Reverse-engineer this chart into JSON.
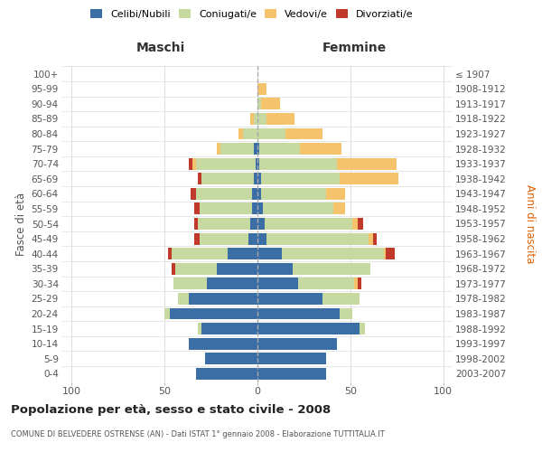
{
  "age_groups": [
    "0-4",
    "5-9",
    "10-14",
    "15-19",
    "20-24",
    "25-29",
    "30-34",
    "35-39",
    "40-44",
    "45-49",
    "50-54",
    "55-59",
    "60-64",
    "65-69",
    "70-74",
    "75-79",
    "80-84",
    "85-89",
    "90-94",
    "95-99",
    "100+"
  ],
  "birth_years": [
    "2003-2007",
    "1998-2002",
    "1993-1997",
    "1988-1992",
    "1983-1987",
    "1978-1982",
    "1973-1977",
    "1968-1972",
    "1963-1967",
    "1958-1962",
    "1953-1957",
    "1948-1952",
    "1943-1947",
    "1938-1942",
    "1933-1937",
    "1928-1932",
    "1923-1927",
    "1918-1922",
    "1913-1917",
    "1908-1912",
    "≤ 1907"
  ],
  "maschi": {
    "celibe": [
      33,
      28,
      37,
      30,
      47,
      37,
      27,
      22,
      16,
      5,
      4,
      3,
      3,
      2,
      1,
      2,
      0,
      0,
      0,
      0,
      0
    ],
    "coniugato": [
      0,
      0,
      0,
      2,
      3,
      6,
      18,
      22,
      30,
      26,
      28,
      28,
      30,
      28,
      32,
      18,
      8,
      2,
      0,
      0,
      0
    ],
    "vedovo": [
      0,
      0,
      0,
      0,
      0,
      0,
      0,
      0,
      0,
      0,
      0,
      0,
      0,
      0,
      2,
      2,
      2,
      2,
      0,
      0,
      0
    ],
    "divorziato": [
      0,
      0,
      0,
      0,
      0,
      0,
      0,
      2,
      2,
      3,
      2,
      3,
      3,
      2,
      2,
      0,
      0,
      0,
      0,
      0,
      0
    ]
  },
  "femmine": {
    "nubile": [
      37,
      37,
      43,
      55,
      44,
      35,
      22,
      19,
      13,
      5,
      4,
      3,
      2,
      2,
      1,
      1,
      0,
      0,
      0,
      0,
      0
    ],
    "coniugata": [
      0,
      0,
      0,
      3,
      7,
      20,
      30,
      42,
      55,
      55,
      47,
      38,
      35,
      42,
      42,
      22,
      15,
      5,
      2,
      0,
      0
    ],
    "vedova": [
      0,
      0,
      0,
      0,
      0,
      0,
      2,
      0,
      1,
      2,
      3,
      6,
      10,
      32,
      32,
      22,
      20,
      15,
      10,
      5,
      0
    ],
    "divorziata": [
      0,
      0,
      0,
      0,
      0,
      0,
      2,
      0,
      5,
      2,
      3,
      0,
      0,
      0,
      0,
      0,
      0,
      0,
      0,
      0,
      0
    ]
  },
  "colors": {
    "celibe": "#3b6ea5",
    "coniugato": "#c5d9a0",
    "vedovo": "#f5c36b",
    "divorziato": "#c0392b"
  },
  "title": "Popolazione per età, sesso e stato civile - 2008",
  "subtitle": "COMUNE DI BELVEDERE OSTRENSE (AN) - Dati ISTAT 1° gennaio 2008 - Elaborazione TUTTITALIA.IT",
  "xlabel_maschi": "Maschi",
  "xlabel_femmine": "Femmine",
  "ylabel_left": "Fasce di età",
  "ylabel_right": "Anni di nascita",
  "legend_labels": [
    "Celibi/Nubili",
    "Coniugati/e",
    "Vedovi/e",
    "Divorziati/e"
  ],
  "xlim": 105,
  "bg_color": "#ffffff",
  "grid_color": "#dddddd"
}
